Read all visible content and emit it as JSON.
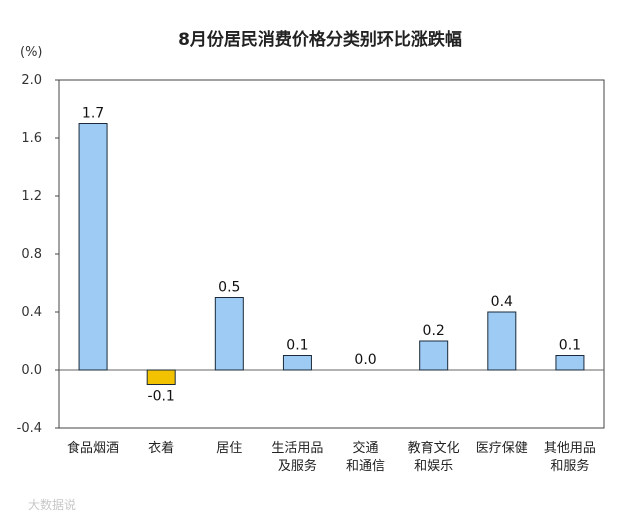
{
  "chart_data": {
    "type": "bar",
    "title": "8月份居民消费价格分类别环比涨跌幅",
    "ylabel": "(%)",
    "ylim": [
      -0.4,
      2.0
    ],
    "yticks": [
      "2.0",
      "1.6",
      "1.2",
      "0.8",
      "0.4",
      "0.0",
      "-0.4"
    ],
    "categories": [
      [
        "食品烟酒"
      ],
      [
        "衣着"
      ],
      [
        "居住"
      ],
      [
        "生活用品",
        "及服务"
      ],
      [
        "交通",
        "和通信"
      ],
      [
        "教育文化",
        "和娱乐"
      ],
      [
        "医疗保健"
      ],
      [
        "其他用品",
        "和服务"
      ]
    ],
    "values": [
      1.7,
      -0.1,
      0.5,
      0.1,
      0.0,
      0.2,
      0.4,
      0.1
    ],
    "labels": [
      "1.7",
      "-0.1",
      "0.5",
      "0.1",
      "0.0",
      "0.2",
      "0.4",
      "0.1"
    ],
    "colors": {
      "positive": "#9ECBF3",
      "negative": "#F2C200",
      "stroke": "#1a2a3a"
    },
    "grid": false,
    "legend": "none"
  },
  "watermark": "大数据说"
}
